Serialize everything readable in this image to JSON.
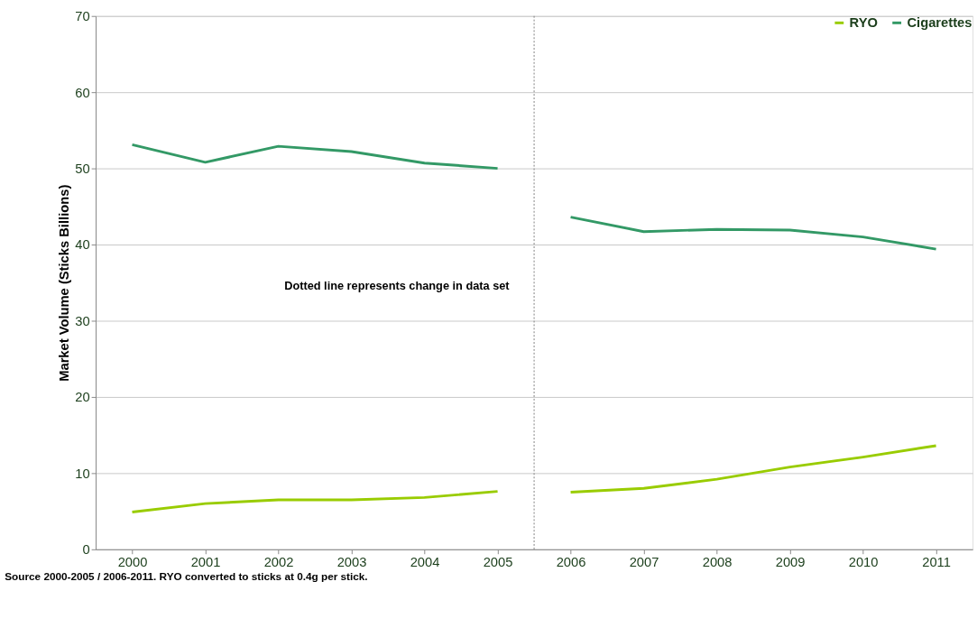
{
  "chart_data": {
    "type": "line",
    "ylabel": "Market Volume (Sticks Billions)",
    "x": [
      2000,
      2001,
      2002,
      2003,
      2004,
      2005,
      2006,
      2007,
      2008,
      2009,
      2010,
      2011
    ],
    "series": [
      {
        "name": "RYO",
        "color": "#99cc00",
        "values": [
          4.9,
          6.0,
          6.5,
          6.5,
          6.8,
          7.6,
          null,
          null,
          null,
          null,
          null,
          null
        ]
      },
      {
        "name": "Cigarettes",
        "color": "#339966",
        "values": [
          53.1,
          50.8,
          52.9,
          52.2,
          50.7,
          50.0,
          null,
          null,
          null,
          null,
          null,
          null
        ]
      },
      {
        "color": "#99cc00",
        "values": [
          null,
          null,
          null,
          null,
          null,
          null,
          7.5,
          8.0,
          9.2,
          10.8,
          12.1,
          13.6
        ]
      },
      {
        "color": "#339966",
        "values": [
          null,
          null,
          null,
          null,
          null,
          null,
          43.6,
          41.7,
          42.0,
          41.9,
          41.0,
          39.4
        ]
      }
    ],
    "xlim": [
      1999.5,
      2011.5
    ],
    "xticks": [
      2000,
      2001,
      2002,
      2003,
      2004,
      2005,
      2006,
      2007,
      2008,
      2009,
      2010,
      2011
    ],
    "ylim": [
      0,
      70
    ],
    "yticks": [
      0,
      10,
      20,
      30,
      40,
      50,
      60,
      70
    ],
    "grid": "y",
    "legend": "top right",
    "marker": "none",
    "line_style": "solid",
    "ref_lines": [
      {
        "axis": "x",
        "value": 2005.5,
        "line_style": "dotted",
        "color": "#808080"
      }
    ],
    "annotations": [
      "Dotted line represents change in data set",
      "Source 2000-2005 / 2006-2011. RYO converted to sticks at 0.4g per stick."
    ]
  }
}
